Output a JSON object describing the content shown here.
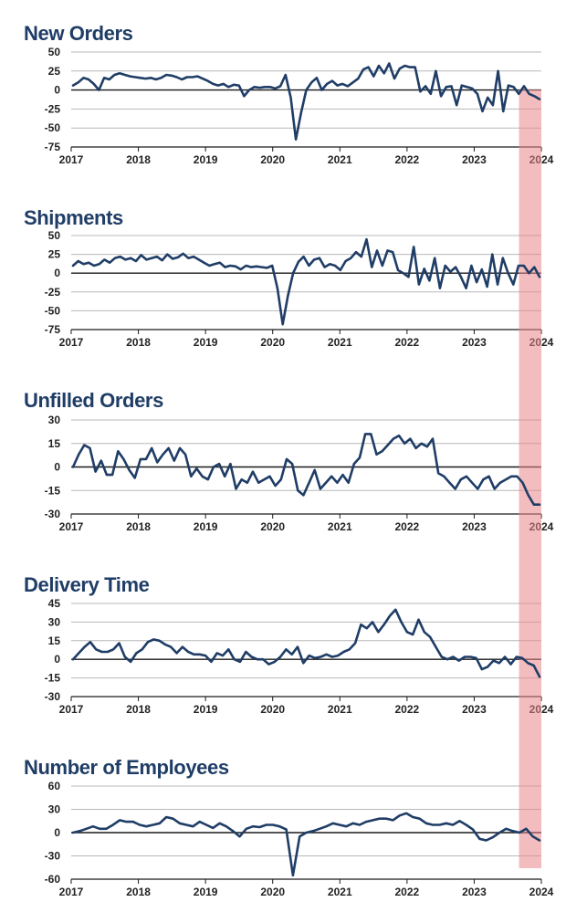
{
  "highlight": {
    "x_start": 2023.667,
    "x_end": 2024.0,
    "color": "#e9868c"
  },
  "chart_data": [
    {
      "type": "line",
      "title": "New Orders",
      "x_ticks": [
        "2017",
        "2018",
        "2019",
        "2020",
        "2021",
        "2022",
        "2023",
        "2024"
      ],
      "y_ticks": [
        "50",
        "25",
        "0",
        "-25",
        "-50",
        "-75"
      ],
      "ylim": [
        -75,
        50
      ],
      "xlim": [
        2017,
        2024
      ],
      "grid": true,
      "series": [
        {
          "values": [
            6,
            10,
            16,
            14,
            8,
            0,
            16,
            14,
            20,
            22,
            20,
            18,
            17,
            16,
            15,
            16,
            14,
            16,
            20,
            19,
            17,
            14,
            17,
            17,
            18,
            15,
            12,
            8,
            6,
            8,
            4,
            7,
            6,
            -8,
            0,
            4,
            3,
            4,
            4,
            2,
            5,
            20,
            -10,
            -65,
            -30,
            0,
            10,
            16,
            0,
            8,
            12,
            6,
            8,
            5,
            10,
            15,
            27,
            30,
            18,
            32,
            22,
            35,
            15,
            28,
            32,
            30,
            30,
            -2,
            5,
            -5,
            25,
            -8,
            4,
            5,
            -20,
            6,
            4,
            2,
            -5,
            -28,
            -10,
            -20,
            25,
            -28,
            6,
            4,
            -5,
            5,
            -5,
            -8,
            -12
          ]
        }
      ]
    },
    {
      "type": "line",
      "title": "Shipments",
      "x_ticks": [
        "2017",
        "2018",
        "2019",
        "2020",
        "2021",
        "2022",
        "2023",
        "2024"
      ],
      "y_ticks": [
        "50",
        "25",
        "0",
        "-25",
        "-50",
        "-75"
      ],
      "ylim": [
        -75,
        50
      ],
      "xlim": [
        2017,
        2024
      ],
      "grid": true,
      "series": [
        {
          "values": [
            10,
            16,
            12,
            14,
            10,
            12,
            18,
            14,
            20,
            22,
            18,
            20,
            16,
            24,
            18,
            20,
            22,
            17,
            25,
            19,
            21,
            26,
            20,
            22,
            18,
            14,
            10,
            12,
            14,
            8,
            10,
            9,
            5,
            10,
            8,
            9,
            8,
            7,
            10,
            -20,
            -68,
            -30,
            0,
            15,
            22,
            10,
            18,
            20,
            8,
            12,
            10,
            4,
            16,
            20,
            28,
            22,
            45,
            8,
            30,
            10,
            30,
            28,
            4,
            0,
            -5,
            35,
            -15,
            6,
            -10,
            20,
            -20,
            10,
            2,
            8,
            -5,
            -20,
            10,
            -12,
            5,
            -18,
            25,
            -15,
            20,
            0,
            -15,
            10,
            10,
            0,
            8,
            -5
          ]
        }
      ]
    },
    {
      "type": "line",
      "title": "Unfilled Orders",
      "x_ticks": [
        "2017",
        "2018",
        "2019",
        "2020",
        "2021",
        "2022",
        "2023",
        "2024"
      ],
      "y_ticks": [
        "30",
        "15",
        "0",
        "-15",
        "-30"
      ],
      "ylim": [
        -30,
        30
      ],
      "xlim": [
        2017,
        2024
      ],
      "grid": true,
      "series": [
        {
          "values": [
            0,
            8,
            14,
            12,
            -3,
            4,
            -5,
            -5,
            10,
            5,
            -2,
            -7,
            5,
            5,
            12,
            3,
            8,
            12,
            4,
            12,
            8,
            -6,
            -1,
            -6,
            -8,
            0,
            2,
            -6,
            2,
            -14,
            -8,
            -10,
            -3,
            -10,
            -8,
            -6,
            -12,
            -8,
            5,
            2,
            -15,
            -18,
            -10,
            -2,
            -14,
            -10,
            -6,
            -10,
            -5,
            -10,
            2,
            6,
            21,
            21,
            8,
            10,
            14,
            18,
            20,
            15,
            18,
            12,
            15,
            13,
            18,
            -4,
            -6,
            -10,
            -14,
            -8,
            -6,
            -10,
            -14,
            -8,
            -6,
            -14,
            -10,
            -8,
            -6,
            -6,
            -10,
            -18,
            -24,
            -24
          ]
        }
      ]
    },
    {
      "type": "line",
      "title": "Delivery Time",
      "x_ticks": [
        "2017",
        "2018",
        "2019",
        "2020",
        "2021",
        "2022",
        "2023",
        "2024"
      ],
      "y_ticks": [
        "45",
        "30",
        "15",
        "0",
        "-15",
        "-30"
      ],
      "ylim": [
        -30,
        45
      ],
      "xlim": [
        2017,
        2024
      ],
      "grid": true,
      "series": [
        {
          "values": [
            0,
            5,
            10,
            14,
            8,
            6,
            6,
            8,
            13,
            2,
            -2,
            5,
            8,
            14,
            16,
            15,
            12,
            10,
            5,
            10,
            6,
            4,
            4,
            3,
            -2,
            5,
            3,
            8,
            0,
            -2,
            6,
            2,
            0,
            0,
            -4,
            -2,
            2,
            8,
            4,
            10,
            -3,
            3,
            1,
            2,
            4,
            2,
            3,
            6,
            8,
            13,
            28,
            25,
            30,
            22,
            28,
            35,
            40,
            30,
            22,
            20,
            32,
            22,
            18,
            10,
            2,
            0,
            2,
            -1,
            2,
            2,
            1,
            -8,
            -6,
            -1,
            -3,
            2,
            -4,
            2,
            1,
            -3,
            -5,
            -14
          ]
        }
      ]
    },
    {
      "type": "line",
      "title": "Number of Employees",
      "x_ticks": [
        "2017",
        "2018",
        "2019",
        "2020",
        "2021",
        "2022",
        "2023",
        "2024"
      ],
      "y_ticks": [
        "60",
        "30",
        "0",
        "-30",
        "-60"
      ],
      "ylim": [
        -60,
        60
      ],
      "xlim": [
        2017,
        2024
      ],
      "grid": true,
      "series": [
        {
          "values": [
            0,
            2,
            5,
            8,
            5,
            5,
            10,
            16,
            14,
            14,
            10,
            8,
            10,
            12,
            20,
            18,
            12,
            10,
            8,
            14,
            10,
            6,
            12,
            8,
            2,
            -5,
            5,
            8,
            7,
            10,
            10,
            8,
            4,
            -55,
            -5,
            0,
            2,
            5,
            8,
            12,
            10,
            8,
            12,
            10,
            14,
            16,
            18,
            18,
            16,
            22,
            25,
            20,
            18,
            12,
            10,
            10,
            12,
            10,
            15,
            10,
            4,
            -8,
            -10,
            -6,
            0,
            5,
            2,
            0,
            5,
            -5,
            -10
          ]
        }
      ]
    }
  ]
}
